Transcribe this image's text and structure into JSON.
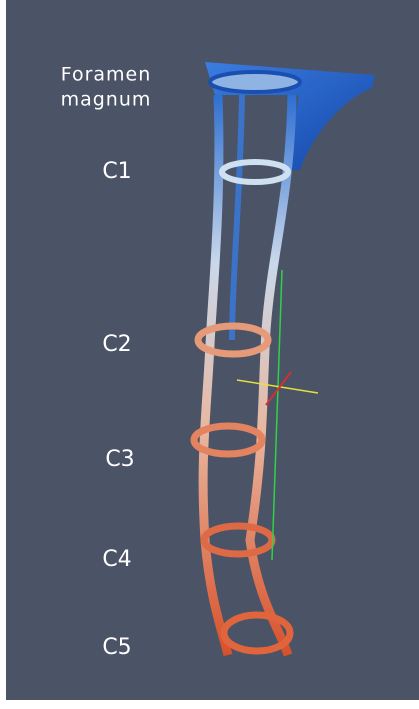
{
  "labels": [
    {
      "lines": [
        "Foramen",
        "magnum"
      ]
    },
    {
      "text": "C1"
    },
    {
      "text": "C2"
    },
    {
      "text": "C3"
    },
    {
      "text": "C4"
    },
    {
      "text": "C5"
    }
  ]
}
